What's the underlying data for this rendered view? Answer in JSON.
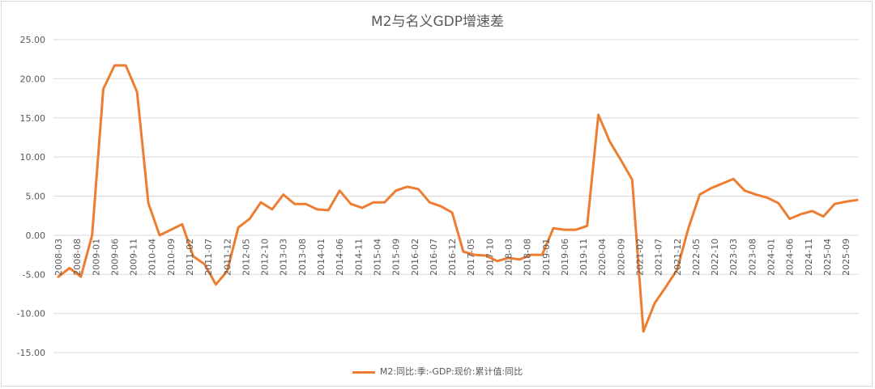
{
  "chart_data": {
    "type": "line",
    "title": "M2与名义GDP增速差",
    "xlabel": "",
    "ylabel": "",
    "ylim": [
      -15,
      25
    ],
    "yticks": [
      "25.00",
      "20.00",
      "15.00",
      "10.00",
      "5.00",
      "0.00",
      "-5.00",
      "-10.00",
      "-15.00"
    ],
    "grid": true,
    "legend_position": "bottom",
    "x_tick_labels": [
      "2008-03",
      "2008-08",
      "2009-01",
      "2009-06",
      "2009-11",
      "2010-04",
      "2010-09",
      "2011-02",
      "2011-07",
      "2011-12",
      "2012-05",
      "2012-10",
      "2013-03",
      "2013-08",
      "2014-01",
      "2014-06",
      "2014-11",
      "2015-04",
      "2015-09",
      "2016-02",
      "2016-07",
      "2016-12",
      "2017-05",
      "2017-10",
      "2018-03",
      "2018-08",
      "2019-01",
      "2019-06",
      "2019-11",
      "2020-04",
      "2020-09",
      "2021-02",
      "2021-07",
      "2021-12",
      "2022-05",
      "2022-10",
      "2023-03",
      "2023-08",
      "2024-01",
      "2024-06",
      "2024-11",
      "2025-04",
      "2025-09"
    ],
    "series": [
      {
        "name": "M2:同比:季:-GDP:现价:累计值:同比",
        "color": "#ED7D31",
        "values": [
          -5.3,
          -4.2,
          -5.3,
          0.0,
          18.7,
          21.7,
          21.7,
          18.3,
          4.1,
          0.0,
          0.7,
          1.4,
          -2.7,
          -3.7,
          -6.3,
          -4.6,
          1.0,
          2.1,
          4.2,
          3.3,
          5.2,
          4.0,
          4.0,
          3.3,
          3.2,
          5.7,
          4.0,
          3.5,
          4.2,
          4.2,
          5.7,
          6.2,
          5.9,
          4.2,
          3.7,
          2.9,
          -2.1,
          -2.5,
          -2.6,
          -3.3,
          -2.9,
          -3.1,
          -2.5,
          -2.5,
          0.9,
          0.7,
          0.7,
          1.2,
          15.4,
          12.0,
          9.6,
          7.1,
          -12.3,
          -8.7,
          -6.6,
          -4.4,
          0.9,
          5.2,
          6.0,
          6.6,
          7.2,
          5.7,
          5.2,
          4.8,
          4.1,
          2.1,
          2.7,
          3.1,
          2.4,
          4.0,
          4.3,
          4.5
        ]
      }
    ]
  }
}
